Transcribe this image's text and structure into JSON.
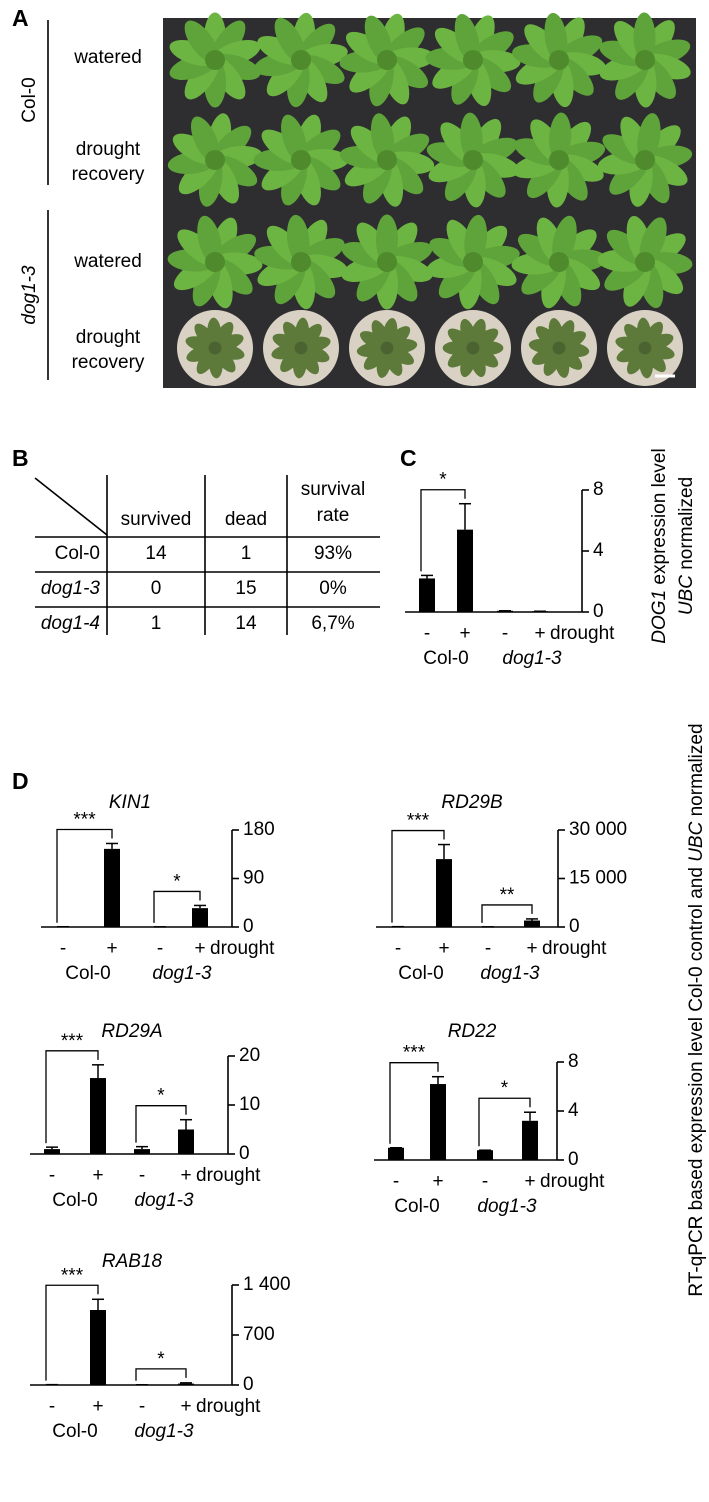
{
  "panel_a": {
    "panel": "A",
    "rows": [
      {
        "genotype": "Col-0",
        "watered": "watered",
        "drought": [
          "drought",
          "recovery"
        ]
      },
      {
        "genotype": "dog1-3",
        "watered": "watered",
        "drought": [
          "drought",
          "recovery"
        ]
      }
    ]
  },
  "table": {
    "panel": "B",
    "header": [
      "survived",
      "dead",
      [
        "survival",
        "rate"
      ]
    ],
    "rows": [
      [
        "Col-0",
        "14",
        "1",
        "93%"
      ],
      [
        "dog1-3",
        "0",
        "15",
        "0%"
      ],
      [
        "dog1-4",
        "1",
        "14",
        "6,7%"
      ]
    ]
  },
  "panel_d_ylabel": [
    "RT-qPCR based expression level Col-0 control and ",
    "UBC",
    " normalized"
  ],
  "chart_data": [
    {
      "type": "bar",
      "panel": "C",
      "title": null,
      "ylabel": [
        [
          "DOG1",
          " expression level"
        ],
        [
          "UBC",
          " normalized"
        ]
      ],
      "categories": [
        "-",
        "+",
        "-",
        "+"
      ],
      "x_label": "drought",
      "groups": [
        "Col-0",
        "dog1-3"
      ],
      "values": [
        2.2,
        5.4,
        0.08,
        0.05
      ],
      "errors": [
        0.2,
        1.7,
        0,
        0
      ],
      "color": "#000000",
      "ylim": [
        0,
        8
      ],
      "yticks": [
        0,
        4,
        8
      ],
      "significance": [
        "*",
        null
      ]
    },
    {
      "type": "bar",
      "panel": "D",
      "title": "KIN1",
      "categories": [
        "-",
        "+",
        "-",
        "+"
      ],
      "x_label": "drought",
      "groups": [
        "Col-0",
        "dog1-3"
      ],
      "values": [
        0.5,
        145,
        0.3,
        35
      ],
      "errors": [
        0,
        10,
        0,
        5
      ],
      "color": "#000000",
      "ylim": [
        0,
        180
      ],
      "yticks": [
        0,
        90,
        180
      ],
      "significance": [
        "***",
        "*"
      ]
    },
    {
      "type": "bar",
      "title": "RD29B",
      "categories": [
        "-",
        "+",
        "-",
        "+"
      ],
      "x_label": "drought",
      "groups": [
        "Col-0",
        "dog1-3"
      ],
      "values": [
        100,
        21000,
        50,
        2000
      ],
      "errors": [
        0,
        4500,
        0,
        500
      ],
      "color": "#000000",
      "ylim": [
        0,
        30000
      ],
      "yticks": [
        0,
        {
          "value": 15000,
          "label": "15 000"
        },
        {
          "value": 30000,
          "label": "30 000"
        }
      ],
      "significance": [
        "***",
        "**"
      ]
    },
    {
      "type": "bar",
      "title": "RD29A",
      "categories": [
        "-",
        "+",
        "-",
        "+"
      ],
      "x_label": "drought",
      "groups": [
        "Col-0",
        "dog1-3"
      ],
      "values": [
        1,
        15.5,
        1,
        5
      ],
      "errors": [
        0.4,
        2.7,
        0.5,
        2
      ],
      "color": "#000000",
      "ylim": [
        0,
        20
      ],
      "yticks": [
        0,
        10,
        20
      ],
      "significance": [
        "***",
        "*"
      ]
    },
    {
      "type": "bar",
      "title": "RD22",
      "categories": [
        "-",
        "+",
        "-",
        "+"
      ],
      "x_label": "drought",
      "groups": [
        "Col-0",
        "dog1-3"
      ],
      "values": [
        1,
        6.2,
        0.8,
        3.2
      ],
      "errors": [
        0,
        0.6,
        0,
        0.7
      ],
      "color": "#000000",
      "ylim": [
        0,
        8
      ],
      "yticks": [
        0,
        4,
        8
      ],
      "significance": [
        "***",
        "*"
      ]
    },
    {
      "type": "bar",
      "title": "RAB18",
      "categories": [
        "-",
        "+",
        "-",
        "+"
      ],
      "x_label": "drought",
      "groups": [
        "Col-0",
        "dog1-3"
      ],
      "values": [
        5,
        1050,
        3,
        20
      ],
      "errors": [
        0,
        150,
        0,
        10
      ],
      "color": "#000000",
      "ylim": [
        0,
        1400
      ],
      "yticks": [
        0,
        700,
        {
          "value": 1400,
          "label": "1 400"
        }
      ],
      "significance": [
        "***",
        "*"
      ]
    }
  ]
}
